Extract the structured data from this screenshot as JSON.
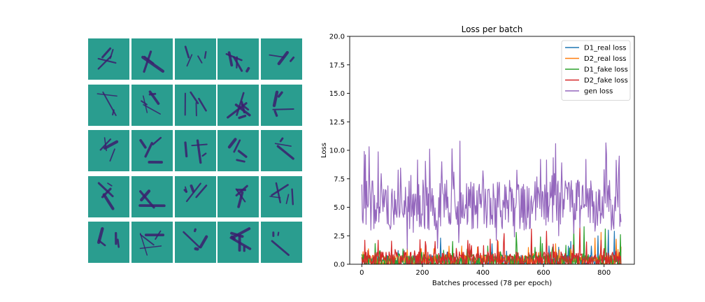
{
  "samples": {
    "rows": 5,
    "cols": 5,
    "background_color": "#2a9d8f",
    "stroke_color": "#3b1f6e"
  },
  "chart_data": {
    "type": "line",
    "title": "Loss per batch",
    "xlabel": "Batches processed (78 per epoch)",
    "ylabel": "Loss",
    "xlim": [
      -40,
      900
    ],
    "ylim": [
      0,
      20
    ],
    "xticks": [
      0,
      200,
      400,
      600,
      800
    ],
    "yticks": [
      0.0,
      2.5,
      5.0,
      7.5,
      10.0,
      12.5,
      15.0,
      17.5,
      20.0
    ],
    "ytick_labels": [
      "0.0",
      "2.5",
      "5.0",
      "7.5",
      "10.0",
      "12.5",
      "15.0",
      "17.5",
      "20.0"
    ],
    "legend_position": "top-right",
    "x_range": [
      0,
      857
    ],
    "series": [
      {
        "name": "D1_real loss",
        "color": "#1f77b4",
        "baseline": 0.3,
        "spread": 0.5,
        "spikes": [
          [
            120,
            1.2
          ],
          [
            260,
            2.3
          ],
          [
            430,
            1.8
          ],
          [
            560,
            1.6
          ],
          [
            690,
            2.0
          ],
          [
            780,
            2.5
          ],
          [
            815,
            3.0
          ],
          [
            835,
            2.9
          ]
        ]
      },
      {
        "name": "D2_real loss",
        "color": "#ff7f0e",
        "baseline": 0.3,
        "spread": 0.5,
        "spikes": [
          [
            5,
            1.1
          ],
          [
            150,
            1.4
          ],
          [
            330,
            1.6
          ],
          [
            450,
            2.0
          ],
          [
            640,
            1.8
          ],
          [
            770,
            2.3
          ],
          [
            790,
            2.8
          ],
          [
            840,
            2.2
          ]
        ]
      },
      {
        "name": "D1_fake loss",
        "color": "#2ca02c",
        "baseline": 0.3,
        "spread": 0.6,
        "spikes": [
          [
            60,
            1.2
          ],
          [
            300,
            2.0
          ],
          [
            510,
            2.8
          ],
          [
            590,
            2.4
          ],
          [
            700,
            3.1
          ],
          [
            735,
            3.3
          ],
          [
            805,
            3.1
          ],
          [
            855,
            2.6
          ]
        ]
      },
      {
        "name": "D2_fake loss",
        "color": "#d62728",
        "baseline": 0.4,
        "spread": 0.7,
        "spikes": [
          [
            20,
            1.2
          ],
          [
            110,
            1.3
          ],
          [
            210,
            2.0
          ],
          [
            350,
            2.1
          ],
          [
            470,
            2.7
          ],
          [
            560,
            3.1
          ],
          [
            610,
            2.9
          ],
          [
            720,
            3.3
          ]
        ]
      },
      {
        "name": "gen loss",
        "color": "#9467bd",
        "baseline": 5.2,
        "spread": 2.2,
        "spikes": [
          [
            0,
            7.0
          ],
          [
            3,
            3.9
          ],
          [
            8,
            9.9
          ],
          [
            12,
            9.6
          ],
          [
            20,
            5.0
          ],
          [
            30,
            3.0
          ],
          [
            60,
            4.5
          ],
          [
            100,
            6.6
          ],
          [
            150,
            1.3
          ],
          [
            170,
            2.8
          ],
          [
            190,
            3.3
          ],
          [
            250,
            1.4
          ],
          [
            265,
            9.0
          ],
          [
            300,
            7.8
          ],
          [
            320,
            1.9
          ],
          [
            400,
            8.2
          ],
          [
            445,
            2.1
          ],
          [
            505,
            2.4
          ],
          [
            590,
            9.2
          ],
          [
            650,
            2.5
          ],
          [
            660,
            8.9
          ],
          [
            700,
            2.7
          ],
          [
            740,
            9.2
          ],
          [
            770,
            2.9
          ],
          [
            800,
            8.3
          ],
          [
            850,
            9.5
          ],
          [
            857,
            3.7
          ]
        ]
      }
    ]
  }
}
